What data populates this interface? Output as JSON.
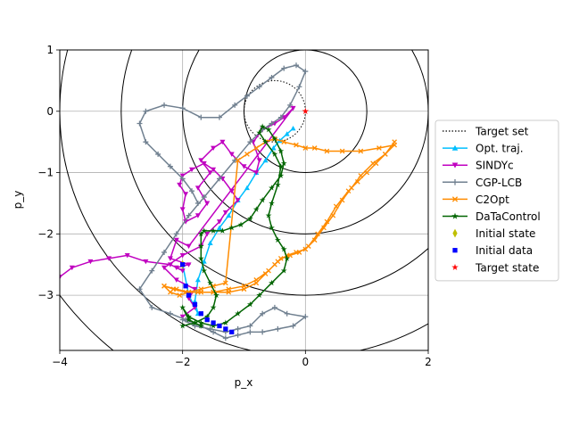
{
  "chart_data": {
    "type": "line",
    "title": "",
    "xlabel": "p_x",
    "ylabel": "p_y",
    "xlim": [
      -4,
      2
    ],
    "ylim": [
      -3.9,
      1
    ],
    "x_ticks": [
      "-4",
      "-2",
      "0",
      "2"
    ],
    "y_ticks": [
      "1",
      "0",
      "-1",
      "-2",
      "-3"
    ],
    "grid": true,
    "legend_position": "right",
    "level_circles": {
      "center": [
        0,
        0
      ],
      "radii": [
        1,
        2,
        3,
        4,
        5
      ]
    },
    "target_set": {
      "center": [
        -0.5,
        0
      ],
      "radius": 0.5
    },
    "series": [
      {
        "name": "Target set",
        "marker": "none",
        "color": "#000000",
        "style": "dotted",
        "x": [],
        "y": []
      },
      {
        "name": "Opt. traj.",
        "marker": "^",
        "color": "#00bfff",
        "x": [
          -2.0,
          -1.9,
          -1.75,
          -1.8,
          -1.75,
          -1.65,
          -1.55,
          -1.4,
          -1.25,
          -1.1,
          -0.95,
          -0.8,
          -0.65,
          -0.52,
          -0.42,
          -0.3,
          -0.2
        ],
        "y": [
          -2.5,
          -3.0,
          -3.3,
          -3.1,
          -2.75,
          -2.45,
          -2.15,
          -1.9,
          -1.7,
          -1.45,
          -1.25,
          -1.0,
          -0.8,
          -0.6,
          -0.48,
          -0.37,
          -0.28
        ]
      },
      {
        "name": "SINDYc",
        "marker": "v",
        "color": "#c000c0",
        "x": [
          -2.0,
          -1.8,
          -1.9,
          -1.8,
          -2.1,
          -2.3,
          -2.0,
          -1.7,
          -1.6,
          -1.4,
          -1.3,
          -1.1,
          -1.2,
          -1.35,
          -1.5,
          -1.65,
          -1.85,
          -2.0,
          -2.05,
          -1.95,
          -2.0,
          -1.95,
          -1.75,
          -1.6,
          -1.75,
          -1.55,
          -1.7,
          -1.5,
          -1.35,
          -1.2,
          -1.0,
          -0.8,
          -0.75,
          -0.85,
          -0.7,
          -0.5,
          -0.35,
          -0.2,
          -1.9,
          -2.1,
          -2.2,
          -1.9,
          -2.1,
          -2.0,
          -2.2,
          -2.6,
          -2.9,
          -3.2,
          -3.5,
          -3.8,
          -4.0
        ],
        "y": [
          -3.35,
          -3.2,
          -3.05,
          -2.9,
          -2.75,
          -2.55,
          -2.35,
          -2.2,
          -2.0,
          -1.8,
          -1.65,
          -1.45,
          -1.3,
          -1.1,
          -0.95,
          -0.85,
          -0.95,
          -1.05,
          -1.2,
          -1.35,
          -1.6,
          -1.8,
          -1.7,
          -1.5,
          -1.25,
          -1.0,
          -0.8,
          -0.6,
          -0.5,
          -0.7,
          -0.9,
          -1.0,
          -0.8,
          -0.5,
          -0.3,
          -0.2,
          -0.1,
          0.05,
          -2.2,
          -2.1,
          -2.4,
          -2.5,
          -2.55,
          -2.6,
          -2.5,
          -2.45,
          -2.35,
          -2.4,
          -2.45,
          -2.55,
          -2.7
        ]
      },
      {
        "name": "CGP-LCB",
        "marker": "+",
        "color": "#708090",
        "x": [
          -2.0,
          -1.8,
          -1.55,
          -1.3,
          -1.1,
          -0.9,
          -0.7,
          -0.5,
          -0.3,
          0.0,
          -0.2,
          -0.45,
          -0.7,
          -0.9,
          -1.1,
          -1.3,
          -1.5,
          -1.7,
          -1.95,
          -2.2,
          -2.5,
          -2.7,
          -2.5,
          -2.3,
          -2.1,
          -1.9,
          -1.65,
          -1.4,
          -1.15,
          -0.9,
          -0.7,
          -0.55,
          -0.4,
          -0.25,
          -0.1,
          0.0,
          -0.15,
          -0.35,
          -0.55,
          -0.75,
          -0.95,
          -1.15,
          -1.4,
          -1.7,
          -2.0,
          -2.3,
          -2.6,
          -2.7,
          -2.6,
          -2.4,
          -2.2,
          -2.0,
          -1.85,
          -1.75
        ],
        "y": [
          -3.4,
          -3.5,
          -3.55,
          -3.6,
          -3.55,
          -3.5,
          -3.3,
          -3.2,
          -3.3,
          -3.35,
          -3.5,
          -3.55,
          -3.6,
          -3.6,
          -3.65,
          -3.7,
          -3.6,
          -3.5,
          -3.4,
          -3.3,
          -3.2,
          -2.9,
          -2.6,
          -2.3,
          -2.0,
          -1.7,
          -1.4,
          -1.1,
          -0.8,
          -0.5,
          -0.3,
          -0.2,
          -0.1,
          0.1,
          0.4,
          0.65,
          0.75,
          0.7,
          0.55,
          0.4,
          0.25,
          0.1,
          -0.1,
          -0.1,
          0.05,
          0.1,
          0.0,
          -0.2,
          -0.5,
          -0.7,
          -0.9,
          -1.1,
          -1.3,
          -1.5
        ]
      },
      {
        "name": "C2Opt",
        "marker": "x",
        "color": "#ff8c00",
        "x": [
          -2.3,
          -2.1,
          -1.9,
          -1.7,
          -1.5,
          -1.25,
          -1.0,
          -0.8,
          -0.65,
          -0.5,
          -0.4,
          -0.25,
          -0.1,
          0.05,
          0.2,
          0.35,
          0.5,
          0.7,
          0.85,
          1.0,
          1.15,
          1.3,
          1.45,
          1.2,
          0.9,
          0.6,
          0.35,
          0.15,
          0.0,
          -0.15,
          -0.35,
          -0.5,
          -0.65,
          -0.8,
          -0.95,
          -1.1,
          -1.3,
          -1.5,
          -1.7,
          -1.9,
          -2.05,
          -2.2,
          -2.3,
          -2.15,
          -1.95,
          -1.75,
          -1.5,
          -1.25,
          -1.0,
          -0.8,
          -0.6,
          -0.45,
          -0.3,
          -0.15,
          0.0,
          0.15,
          0.3,
          0.45,
          0.6,
          0.75,
          0.9,
          1.1,
          1.3,
          1.45
        ],
        "y": [
          -2.85,
          -2.9,
          -2.95,
          -2.95,
          -2.95,
          -2.95,
          -2.9,
          -2.8,
          -2.65,
          -2.5,
          -2.4,
          -2.35,
          -2.3,
          -2.2,
          -2.0,
          -1.8,
          -1.55,
          -1.3,
          -1.15,
          -1.0,
          -0.85,
          -0.7,
          -0.55,
          -0.6,
          -0.65,
          -0.65,
          -0.65,
          -0.6,
          -0.6,
          -0.55,
          -0.5,
          -0.45,
          -0.5,
          -0.6,
          -0.7,
          -0.8,
          -2.8,
          -2.85,
          -2.9,
          -2.95,
          -3.0,
          -2.95,
          -2.85,
          -2.9,
          -2.95,
          -2.95,
          -2.95,
          -2.9,
          -2.85,
          -2.75,
          -2.6,
          -2.45,
          -2.35,
          -2.3,
          -2.25,
          -2.1,
          -1.9,
          -1.7,
          -1.45,
          -1.25,
          -1.05,
          -0.85,
          -0.7,
          -0.5
        ]
      },
      {
        "name": "DaTaControl",
        "marker": "*",
        "color": "#006400",
        "x": [
          -2.0,
          -1.8,
          -1.6,
          -1.5,
          -1.45,
          -1.55,
          -1.65,
          -1.7,
          -1.7,
          -1.7,
          -1.65,
          -1.5,
          -1.35,
          -1.2,
          -1.05,
          -0.9,
          -0.8,
          -0.7,
          -0.55,
          -0.4,
          -0.35,
          -0.4,
          -0.5,
          -0.6,
          -0.7,
          -0.75,
          -0.65,
          -0.5,
          -0.4,
          -0.45,
          -0.55,
          -0.6,
          -0.55,
          -0.45,
          -0.35,
          -0.3,
          -0.35,
          -0.55,
          -0.75,
          -0.9,
          -1.1,
          -1.3,
          -1.5,
          -1.7,
          -1.9,
          -2.0,
          -1.9,
          -1.8,
          -1.7
        ],
        "y": [
          -3.5,
          -3.45,
          -3.35,
          -3.2,
          -3.0,
          -2.8,
          -2.6,
          -2.4,
          -2.2,
          -2.0,
          -1.95,
          -1.95,
          -1.95,
          -1.9,
          -1.85,
          -1.75,
          -1.6,
          -1.45,
          -1.25,
          -1.05,
          -0.85,
          -0.65,
          -0.45,
          -0.3,
          -0.25,
          -0.35,
          -0.5,
          -0.7,
          -0.9,
          -1.2,
          -1.5,
          -1.7,
          -1.9,
          -2.1,
          -2.25,
          -2.4,
          -2.6,
          -2.8,
          -3.0,
          -3.15,
          -3.3,
          -3.45,
          -3.5,
          -3.45,
          -3.35,
          -3.2,
          -3.4,
          -3.45,
          -3.5
        ]
      },
      {
        "name": "Initial state",
        "marker": "d",
        "color": "#bfbf00",
        "style": "none",
        "x": [
          -2.0
        ],
        "y": [
          -2.5
        ]
      },
      {
        "name": "Initial data",
        "marker": "s",
        "color": "#0000ff",
        "style": "none",
        "x": [
          -2.0,
          -1.95,
          -1.9,
          -1.8,
          -1.7,
          -1.6,
          -1.5,
          -1.4,
          -1.3,
          -1.2
        ],
        "y": [
          -2.5,
          -2.85,
          -3.0,
          -3.15,
          -3.3,
          -3.4,
          -3.45,
          -3.5,
          -3.55,
          -3.6
        ]
      },
      {
        "name": "Target state",
        "marker": "*",
        "color": "#ff0000",
        "style": "none",
        "x": [
          0.0
        ],
        "y": [
          0.0
        ]
      }
    ]
  }
}
